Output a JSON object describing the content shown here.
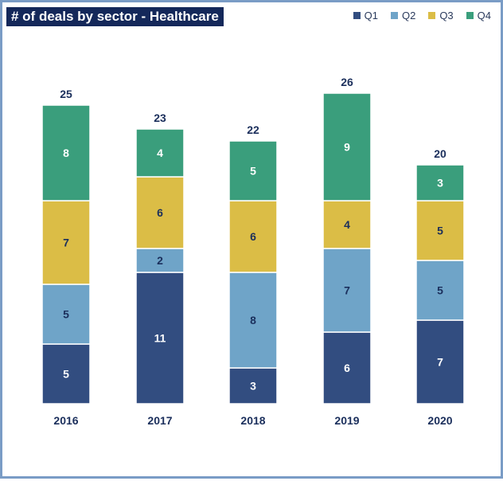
{
  "colors": {
    "Q1": "#324d80",
    "Q2": "#6fa4c8",
    "Q3": "#dbbd46",
    "Q4": "#3a9e7c",
    "title_bg": "#14285a",
    "border": "#7a9cc6",
    "label_dark": "#1b2f5c"
  },
  "chart_data": {
    "type": "bar",
    "stacked": true,
    "title": "# of deals by sector - Healthcare",
    "categories": [
      "2016",
      "2017",
      "2018",
      "2019",
      "2020"
    ],
    "series": [
      {
        "name": "Q1",
        "values": [
          5,
          11,
          3,
          6,
          7
        ]
      },
      {
        "name": "Q2",
        "values": [
          5,
          2,
          8,
          7,
          5
        ]
      },
      {
        "name": "Q3",
        "values": [
          7,
          6,
          6,
          4,
          5
        ]
      },
      {
        "name": "Q4",
        "values": [
          8,
          4,
          5,
          9,
          3
        ]
      }
    ],
    "totals": [
      25,
      23,
      22,
      26,
      20
    ],
    "legend_position": "top-right",
    "grid": false,
    "ylim": [
      0,
      26
    ]
  }
}
